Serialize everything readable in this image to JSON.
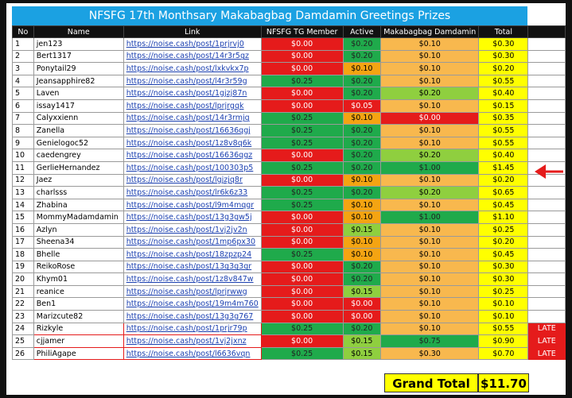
{
  "title": "NFSFG 17th Monthsary Makabagbag Damdamin Greetings Prizes",
  "columns": [
    "No",
    "Name",
    "Link",
    "NFSFG TG Member",
    "Active",
    "Makabagbag Damdamin",
    "Total"
  ],
  "rows": [
    {
      "no": 1,
      "name": "jen123",
      "link": "https://noise.cash/post/1prjrvj0",
      "member": "$0.00",
      "active": "$0.20",
      "makabagbag": "$0.10",
      "total": "$0.30",
      "fills": [
        "red",
        "green",
        "orange"
      ]
    },
    {
      "no": 2,
      "name": "Bert1317",
      "link": "https://noise.cash/post/14r3r5gz",
      "member": "$0.00",
      "active": "$0.20",
      "makabagbag": "$0.10",
      "total": "$0.30",
      "fills": [
        "red",
        "green",
        "orange"
      ]
    },
    {
      "no": 3,
      "name": "Ponytail29",
      "link": "https://noise.cash/post/lxkvkx7p",
      "member": "$0.00",
      "active": "$0.10",
      "makabagbag": "$0.10",
      "total": "$0.20",
      "fills": [
        "red",
        "amber",
        "orange"
      ]
    },
    {
      "no": 4,
      "name": "Jeansapphire82",
      "link": "https://noise.cash/post/l4r3r59g",
      "member": "$0.25",
      "active": "$0.20",
      "makabagbag": "$0.10",
      "total": "$0.55",
      "fills": [
        "green",
        "green",
        "orange"
      ]
    },
    {
      "no": 5,
      "name": "Laven",
      "link": "https://noise.cash/post/1gjzj87n",
      "member": "$0.00",
      "active": "$0.20",
      "makabagbag": "$0.20",
      "total": "$0.40",
      "fills": [
        "red",
        "green",
        "lime"
      ]
    },
    {
      "no": 6,
      "name": "issay1417",
      "link": "https://noise.cash/post/lprjrgqk",
      "member": "$0.00",
      "active": "$0.05",
      "makabagbag": "$0.10",
      "total": "$0.15",
      "fills": [
        "red",
        "red",
        "orange"
      ]
    },
    {
      "no": 7,
      "name": "Calyxxienn",
      "link": "https://noise.cash/post/14r3rmjg",
      "member": "$0.25",
      "active": "$0.10",
      "makabagbag": "$0.00",
      "total": "$0.35",
      "fills": [
        "green",
        "amber",
        "red"
      ]
    },
    {
      "no": 8,
      "name": "Zanella",
      "link": "https://noise.cash/post/16636qgj",
      "member": "$0.25",
      "active": "$0.20",
      "makabagbag": "$0.10",
      "total": "$0.55",
      "fills": [
        "green",
        "green",
        "orange"
      ]
    },
    {
      "no": 9,
      "name": "Genielogoc52",
      "link": "https://noise.cash/post/1z8v8q6k",
      "member": "$0.25",
      "active": "$0.20",
      "makabagbag": "$0.10",
      "total": "$0.55",
      "fills": [
        "green",
        "green",
        "orange"
      ]
    },
    {
      "no": 10,
      "name": "caedengrey",
      "link": "https://noise.cash/post/16636qgz",
      "member": "$0.00",
      "active": "$0.20",
      "makabagbag": "$0.20",
      "total": "$0.40",
      "fills": [
        "red",
        "green",
        "lime"
      ]
    },
    {
      "no": 11,
      "name": "GerlieHernandez",
      "link": "https://noise.cash/post/100303p5",
      "member": "$0.25",
      "active": "$0.20",
      "makabagbag": "$1.00",
      "total": "$1.45",
      "fills": [
        "green",
        "green",
        "green"
      ]
    },
    {
      "no": 12,
      "name": "Jaez",
      "link": "https://noise.cash/post/lgjzjq8r",
      "member": "$0.00",
      "active": "$0.10",
      "makabagbag": "$0.10",
      "total": "$0.20",
      "fills": [
        "red",
        "amber",
        "orange"
      ]
    },
    {
      "no": 13,
      "name": "charlsss",
      "link": "https://noise.cash/post/lr6k6z33",
      "member": "$0.25",
      "active": "$0.20",
      "makabagbag": "$0.20",
      "total": "$0.65",
      "fills": [
        "green",
        "green",
        "lime"
      ]
    },
    {
      "no": 14,
      "name": "Zhabina",
      "link": "https://noise.cash/post/l9m4mqgr",
      "member": "$0.25",
      "active": "$0.10",
      "makabagbag": "$0.10",
      "total": "$0.45",
      "fills": [
        "green",
        "amber",
        "orange"
      ]
    },
    {
      "no": 15,
      "name": "MommyMadamdamin",
      "link": "https://noise.cash/post/13g3gw5j",
      "member": "$0.00",
      "active": "$0.10",
      "makabagbag": "$1.00",
      "total": "$1.10",
      "fills": [
        "red",
        "amber",
        "green"
      ]
    },
    {
      "no": 16,
      "name": "Azlyn",
      "link": "https://noise.cash/post/1vj2jv2n",
      "member": "$0.00",
      "active": "$0.15",
      "makabagbag": "$0.10",
      "total": "$0.25",
      "fills": [
        "red",
        "lime",
        "orange"
      ]
    },
    {
      "no": 17,
      "name": "Sheena34",
      "link": "https://noise.cash/post/1mp6px30",
      "member": "$0.00",
      "active": "$0.10",
      "makabagbag": "$0.10",
      "total": "$0.20",
      "fills": [
        "red",
        "amber",
        "orange"
      ]
    },
    {
      "no": 18,
      "name": "Bhelle",
      "link": "https://noise.cash/post/18zpzp24",
      "member": "$0.25",
      "active": "$0.10",
      "makabagbag": "$0.10",
      "total": "$0.45",
      "fills": [
        "green",
        "amber",
        "orange"
      ]
    },
    {
      "no": 19,
      "name": "ReikoRose",
      "link": "https://noise.cash/post/13g3g3gr",
      "member": "$0.00",
      "active": "$0.20",
      "makabagbag": "$0.10",
      "total": "$0.30",
      "fills": [
        "red",
        "green",
        "orange"
      ]
    },
    {
      "no": 20,
      "name": "Khym01",
      "link": "https://noise.cash/post/1z8v847w",
      "member": "$0.00",
      "active": "$0.20",
      "makabagbag": "$0.10",
      "total": "$0.30",
      "fills": [
        "red",
        "green",
        "orange"
      ]
    },
    {
      "no": 21,
      "name": "reanice",
      "link": "https://noise.cash/post/lprjrwwg",
      "member": "$0.00",
      "active": "$0.15",
      "makabagbag": "$0.10",
      "total": "$0.25",
      "fills": [
        "red",
        "lime",
        "orange"
      ]
    },
    {
      "no": 22,
      "name": "Ben1",
      "link": "https://noise.cash/post/19m4m760",
      "member": "$0.00",
      "active": "$0.00",
      "makabagbag": "$0.10",
      "total": "$0.10",
      "fills": [
        "red",
        "red",
        "orange"
      ]
    },
    {
      "no": 23,
      "name": "Marizcute82",
      "link": "https://noise.cash/post/13g3g767",
      "member": "$0.00",
      "active": "$0.00",
      "makabagbag": "$0.10",
      "total": "$0.10",
      "fills": [
        "red",
        "red",
        "orange"
      ]
    },
    {
      "no": 24,
      "name": "Rizkyle",
      "link": "https://noise.cash/post/1prjr79p",
      "member": "$0.25",
      "active": "$0.20",
      "makabagbag": "$0.10",
      "total": "$0.55",
      "status": "LATE",
      "fills": [
        "green",
        "green",
        "orange"
      ]
    },
    {
      "no": 25,
      "name": "cjjamer",
      "link": "https://noise.cash/post/1vj2jxnz",
      "member": "$0.00",
      "active": "$0.15",
      "makabagbag": "$0.75",
      "total": "$0.90",
      "status": "LATE",
      "fills": [
        "red",
        "lime",
        "green"
      ]
    },
    {
      "no": 26,
      "name": "PhiliAgape",
      "link": "https://noise.cash/post/l6636vqn",
      "member": "$0.25",
      "active": "$0.15",
      "makabagbag": "$0.30",
      "total": "$0.70",
      "status": "LATE",
      "fills": [
        "green",
        "lime",
        "orange"
      ]
    }
  ],
  "grand_total": {
    "label": "Grand Total",
    "value": "$11.70"
  }
}
